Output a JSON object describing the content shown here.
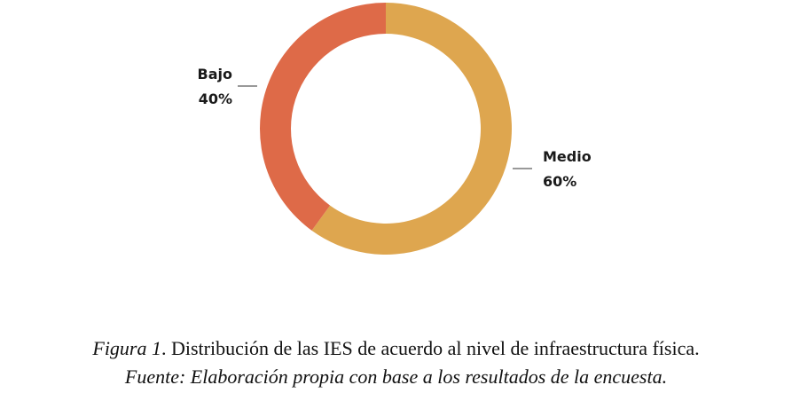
{
  "chart_data": {
    "type": "pie",
    "donut": true,
    "categories": [
      "Medio",
      "Bajo"
    ],
    "values": [
      60,
      40
    ],
    "value_labels": [
      "60%",
      "40%"
    ],
    "colors": [
      "#DEA64F",
      "#DE6A48"
    ],
    "legend": "none"
  },
  "caption": {
    "figure_label": "Figura 1",
    "figure_text": ". Distribución de las IES de acuerdo al nivel de infraestructura física.",
    "source": "Fuente: Elaboración propia con base a los resultados de la encuesta."
  }
}
